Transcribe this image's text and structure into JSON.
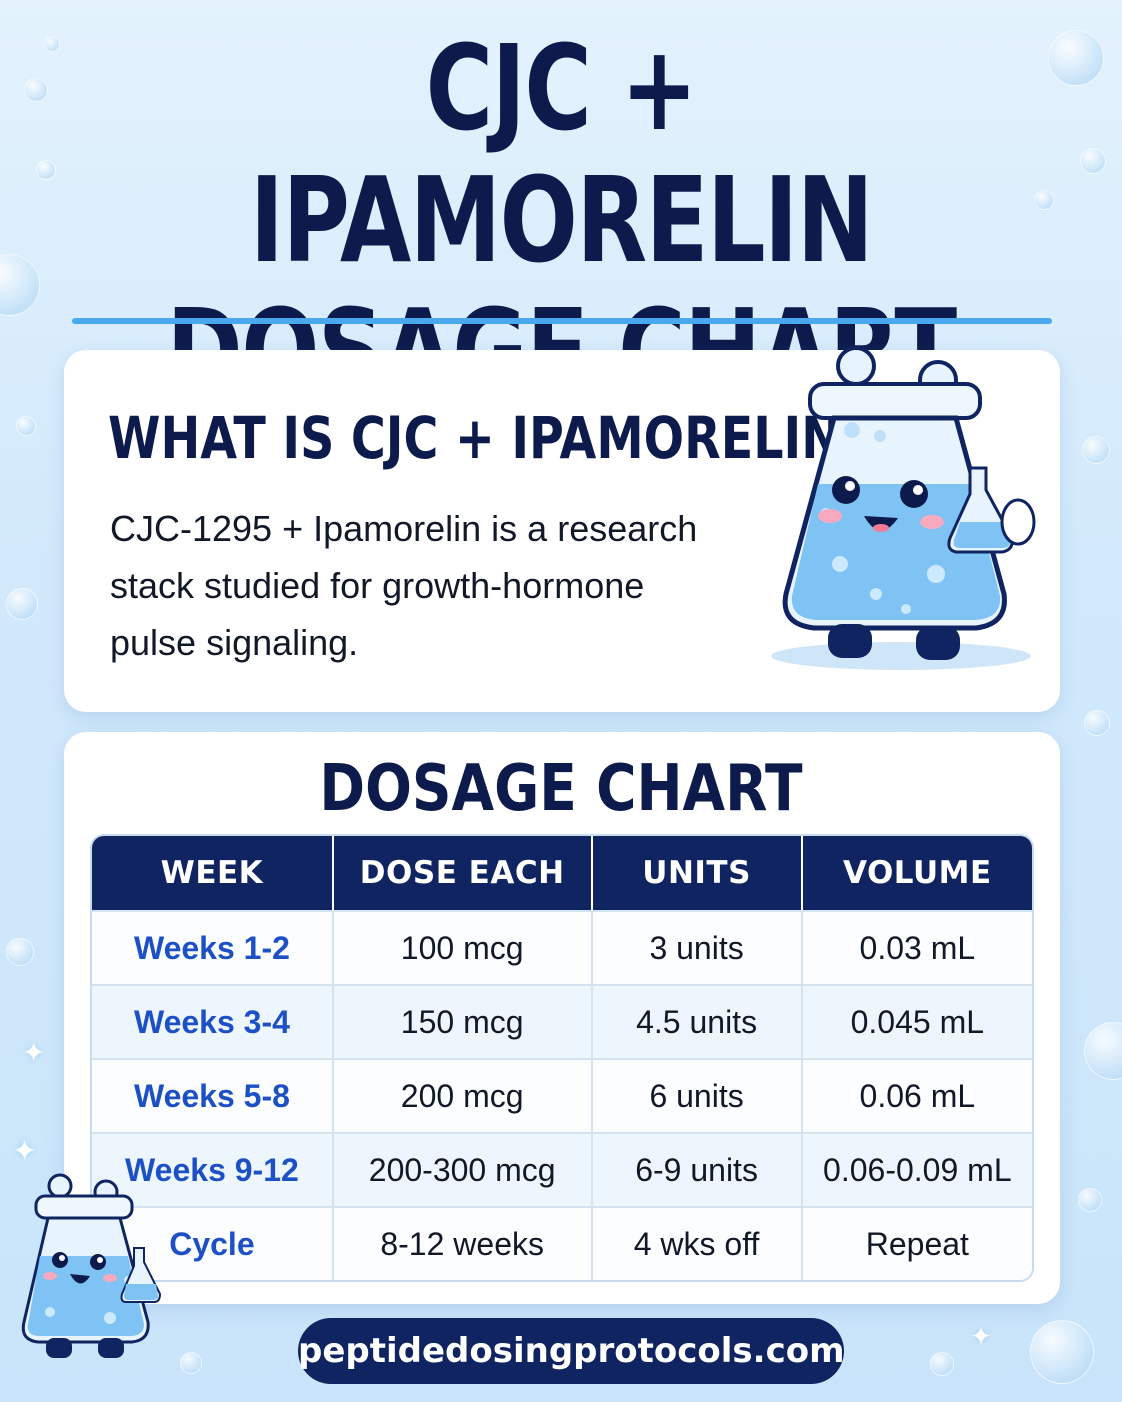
{
  "title": {
    "line1": "CJC + IPAMORELIN",
    "line2": "DOSAGE CHART"
  },
  "intro": {
    "heading": "WHAT IS CJC + IPAMORELIN?",
    "body": "CJC-1295 + Ipamorelin is a research stack studied for growth-hormone pulse signaling."
  },
  "dosage": {
    "heading": "DOSAGE CHART",
    "columns": [
      "WEEK",
      "DOSE EACH",
      "UNITS",
      "VOLUME"
    ],
    "rows": [
      {
        "week": "Weeks 1-2",
        "dose": "100 mcg",
        "units": "3 units",
        "volume": "0.03 mL"
      },
      {
        "week": "Weeks 3-4",
        "dose": "150 mcg",
        "units": "4.5 units",
        "volume": "0.045 mL"
      },
      {
        "week": "Weeks 5-8",
        "dose": "200 mcg",
        "units": "6 units",
        "volume": "0.06 mL"
      },
      {
        "week": "Weeks 9-12",
        "dose": "200-300 mcg",
        "units": "6-9 units",
        "volume": "0.06-0.09 mL"
      },
      {
        "week": "Cycle",
        "dose": "8-12 weeks",
        "units": "4 wks off",
        "volume": "Repeat"
      }
    ]
  },
  "footer": {
    "url": "peptidedosingprotocols.com"
  },
  "colors": {
    "navy": "#0d1b4c",
    "header_bg": "#0f2460",
    "accent_blue": "#4aa8ee",
    "week_text": "#1c50c4"
  },
  "icons": {
    "mascot_large": "flask-mascot-icon",
    "mascot_small": "flask-mascot-icon"
  }
}
